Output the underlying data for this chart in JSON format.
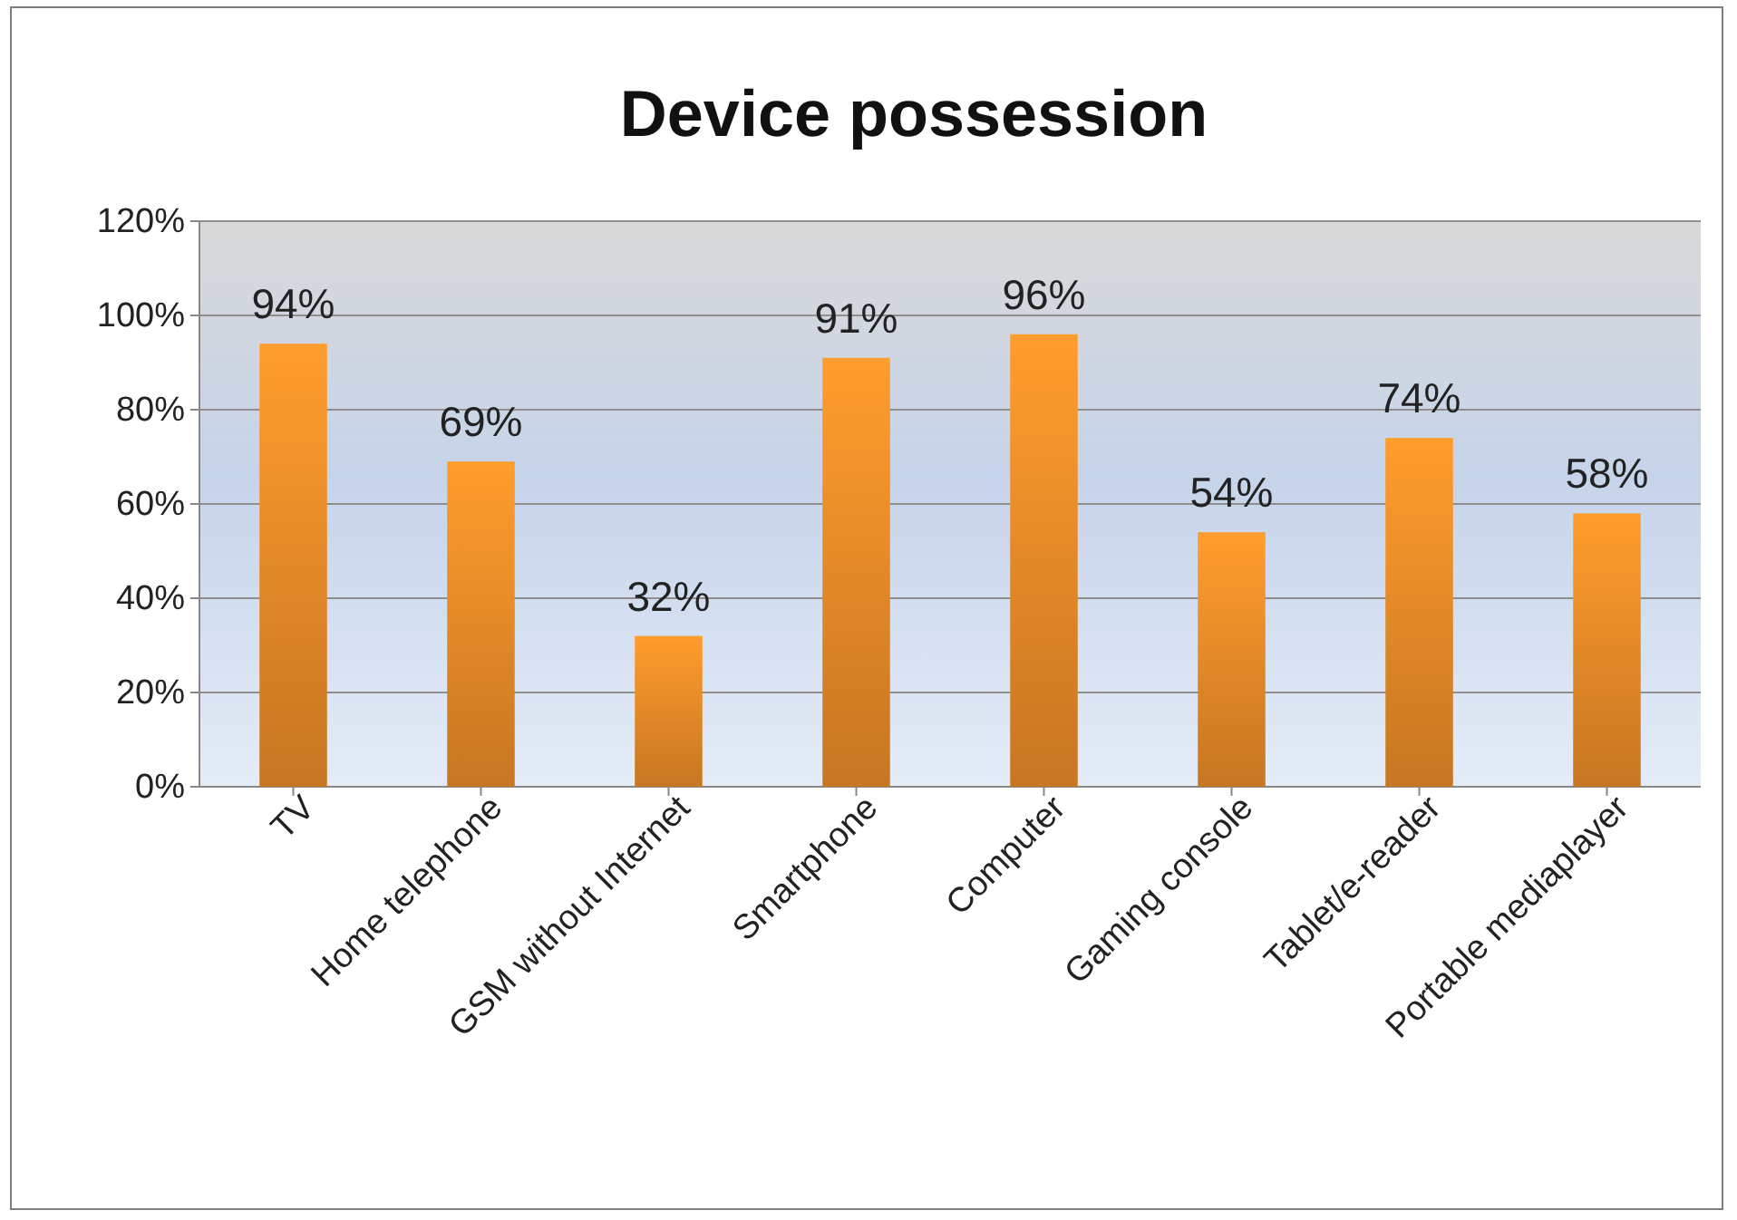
{
  "chart_data": {
    "type": "bar",
    "title": "Device possession",
    "categories": [
      "TV",
      "Home telephone",
      "GSM without Internet",
      "Smartphone",
      "Computer",
      "Gaming console",
      "Tablet/e-reader",
      "Portable mediaplayer"
    ],
    "values": [
      94,
      69,
      32,
      91,
      96,
      54,
      74,
      58
    ],
    "value_labels": [
      "94%",
      "69%",
      "32%",
      "91%",
      "96%",
      "54%",
      "74%",
      "58%"
    ],
    "color": "#f7922a",
    "ylim": [
      0,
      120
    ],
    "yticks": [
      {
        "value": 0,
        "label": "0%"
      },
      {
        "value": 20,
        "label": "20%"
      },
      {
        "value": 40,
        "label": "40%"
      },
      {
        "value": 60,
        "label": "60%"
      },
      {
        "value": 80,
        "label": "80%"
      },
      {
        "value": 100,
        "label": "100%"
      },
      {
        "value": 120,
        "label": "120%"
      }
    ],
    "grid": "y"
  }
}
